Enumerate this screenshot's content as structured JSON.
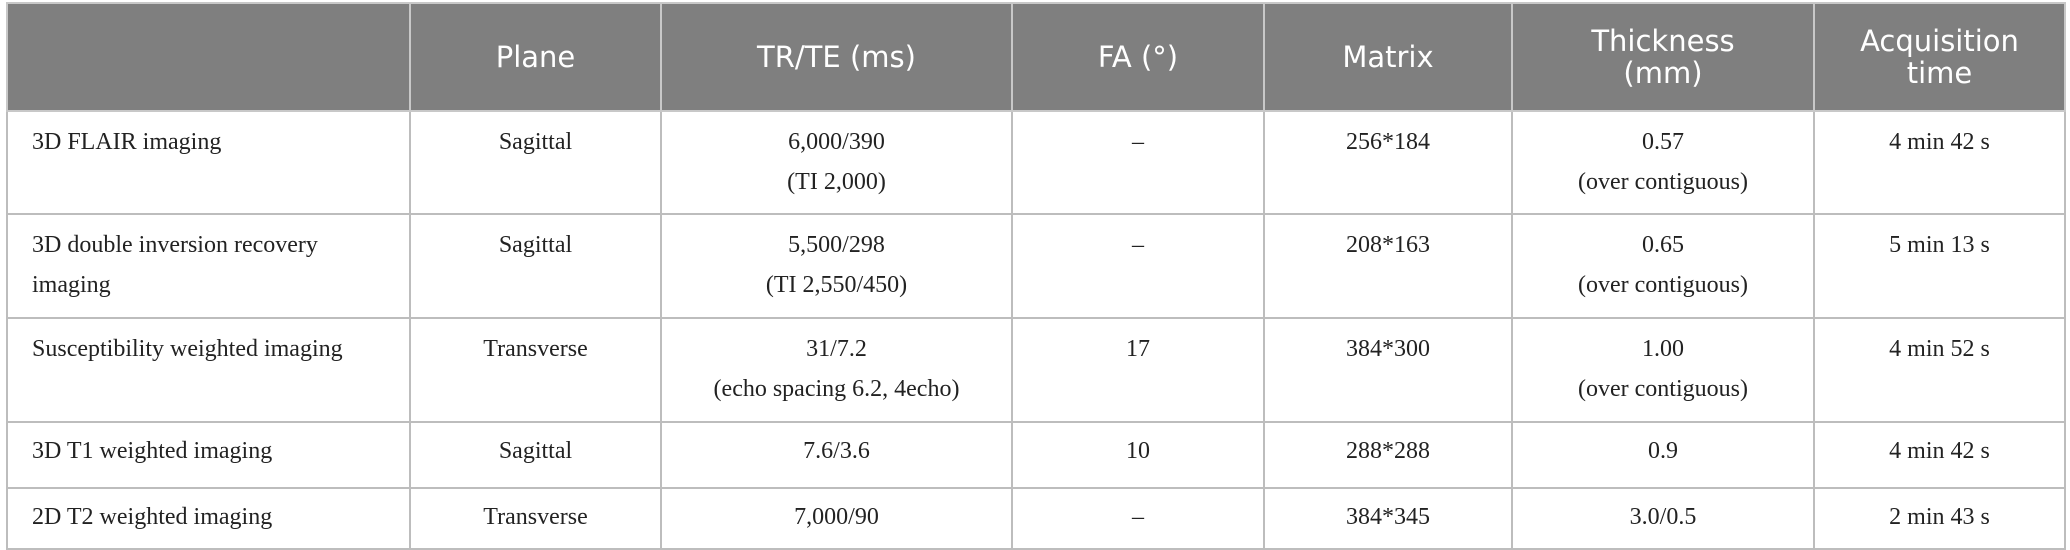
{
  "table": {
    "header": [
      [
        "Plane"
      ],
      [
        "TR/TE (ms)"
      ],
      [
        "FA (°)"
      ],
      [
        "Matrix"
      ],
      [
        "Thickness",
        "(mm)"
      ],
      [
        "Acquisition",
        "time"
      ]
    ],
    "rows": [
      [
        [
          "3D FLAIR imaging"
        ],
        [
          "Sagittal"
        ],
        [
          "6,000/390",
          "(TI 2,000)"
        ],
        [
          "–"
        ],
        [
          "256*184"
        ],
        [
          "0.57",
          "(over contiguous)"
        ],
        [
          "4 min 42 s"
        ]
      ],
      [
        [
          "3D double inversion recovery imaging"
        ],
        [
          "Sagittal"
        ],
        [
          "5,500/298",
          "(TI 2,550/450)"
        ],
        [
          "–"
        ],
        [
          "208*163"
        ],
        [
          "0.65",
          "(over contiguous)"
        ],
        [
          "5 min 13 s"
        ]
      ],
      [
        [
          "Susceptibility weighted imaging"
        ],
        [
          "Transverse"
        ],
        [
          "31/7.2",
          "(echo spacing 6.2, 4echo)"
        ],
        [
          "17"
        ],
        [
          "384*300"
        ],
        [
          "1.00",
          "(over contiguous)"
        ],
        [
          "4 min 52 s"
        ]
      ],
      [
        [
          "3D T1 weighted imaging"
        ],
        [
          "Sagittal"
        ],
        [
          "7.6/3.6"
        ],
        [
          "10"
        ],
        [
          "288*288"
        ],
        [
          "0.9"
        ],
        [
          "4 min 42 s"
        ]
      ],
      [
        [
          "2D T2 weighted imaging"
        ],
        [
          "Transverse"
        ],
        [
          "7,000/90"
        ],
        [
          "–"
        ],
        [
          "384*345"
        ],
        [
          "3.0/0.5"
        ],
        [
          "2 min 43 s"
        ]
      ]
    ]
  }
}
